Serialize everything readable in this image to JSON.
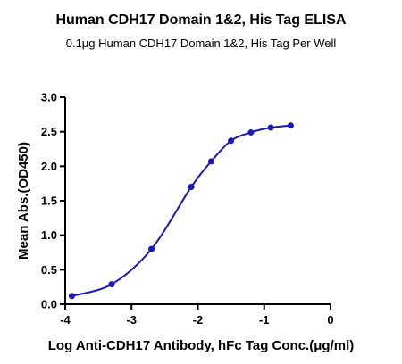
{
  "chart_data": {
    "type": "line",
    "title": "Human CDH17 Domain 1&2, His Tag ELISA",
    "subtitle": "0.1μg Human CDH17 Domain 1&2, His Tag Per Well",
    "xlabel": "Log Anti-CDH17 Antibody, hFc Tag Conc.(μg/ml)",
    "ylabel": "Mean Abs.(OD450)",
    "xlim": [
      -4,
      0
    ],
    "ylim": [
      0,
      3.0
    ],
    "xticks": [
      "-4",
      "-3",
      "-2",
      "-1",
      "0"
    ],
    "yticks": [
      "0.0",
      "0.5",
      "1.0",
      "1.5",
      "2.0",
      "2.5",
      "3.0"
    ],
    "grid": false,
    "color": "#1a1ab8",
    "series": [
      {
        "x": [
          -3.9,
          -3.3,
          -2.7,
          -2.1,
          -1.8,
          -1.5,
          -1.2,
          -0.9,
          -0.6
        ],
        "y": [
          0.12,
          0.29,
          0.8,
          1.7,
          2.07,
          2.37,
          2.49,
          2.56,
          2.59
        ]
      }
    ]
  }
}
